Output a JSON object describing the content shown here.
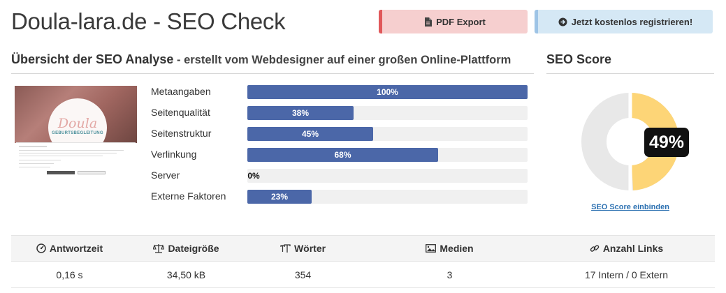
{
  "page": {
    "title": "Doula-lara.de - SEO Check"
  },
  "toolbar": {
    "pdf_label": "PDF Export",
    "pdf_icon": "file-pdf-icon",
    "register_label": "Jetzt kostenlos registrieren!",
    "register_icon": "arrow-circle-right-icon",
    "pdf_color": "#f6cfcf",
    "pdf_accent": "#e0585a",
    "register_color": "#d5e8f5"
  },
  "overview": {
    "heading": "Übersicht der SEO Analyse",
    "subheading": " - erstellt vom Webdesigner auf einer großen Online-Plattform",
    "thumbnail": {
      "script_text": "Doula",
      "sub_text": "GEBURTSBEGLEITUNG"
    },
    "bar_color": "#4b67a8",
    "metrics": [
      {
        "label": "Metaangaben",
        "percent": 100,
        "value_label": "100%"
      },
      {
        "label": "Seitenqualität",
        "percent": 38,
        "value_label": "38%"
      },
      {
        "label": "Seitenstruktur",
        "percent": 45,
        "value_label": "45%"
      },
      {
        "label": "Verlinkung",
        "percent": 68,
        "value_label": "68%"
      },
      {
        "label": "Server",
        "percent": 0,
        "value_label": "0%"
      },
      {
        "label": "Externe Faktoren",
        "percent": 23,
        "value_label": "23%"
      }
    ]
  },
  "score": {
    "heading": "SEO Score",
    "value": 49,
    "value_label": "49%",
    "fill_color": "#fdd577",
    "track_color": "#e8e8e8",
    "link_label": "SEO Score einbinden"
  },
  "stats": {
    "headers": [
      {
        "label": "Antwortzeit",
        "icon": "gauge-icon"
      },
      {
        "label": "Dateigröße",
        "icon": "balance-scale-icon"
      },
      {
        "label": "Wörter",
        "icon": "text-height-icon"
      },
      {
        "label": "Medien",
        "icon": "image-icon"
      },
      {
        "label": "Anzahl Links",
        "icon": "link-icon"
      }
    ],
    "values": [
      "0,16 s",
      "34,50 kB",
      "354",
      "3",
      "17 Intern / 0 Extern"
    ]
  }
}
